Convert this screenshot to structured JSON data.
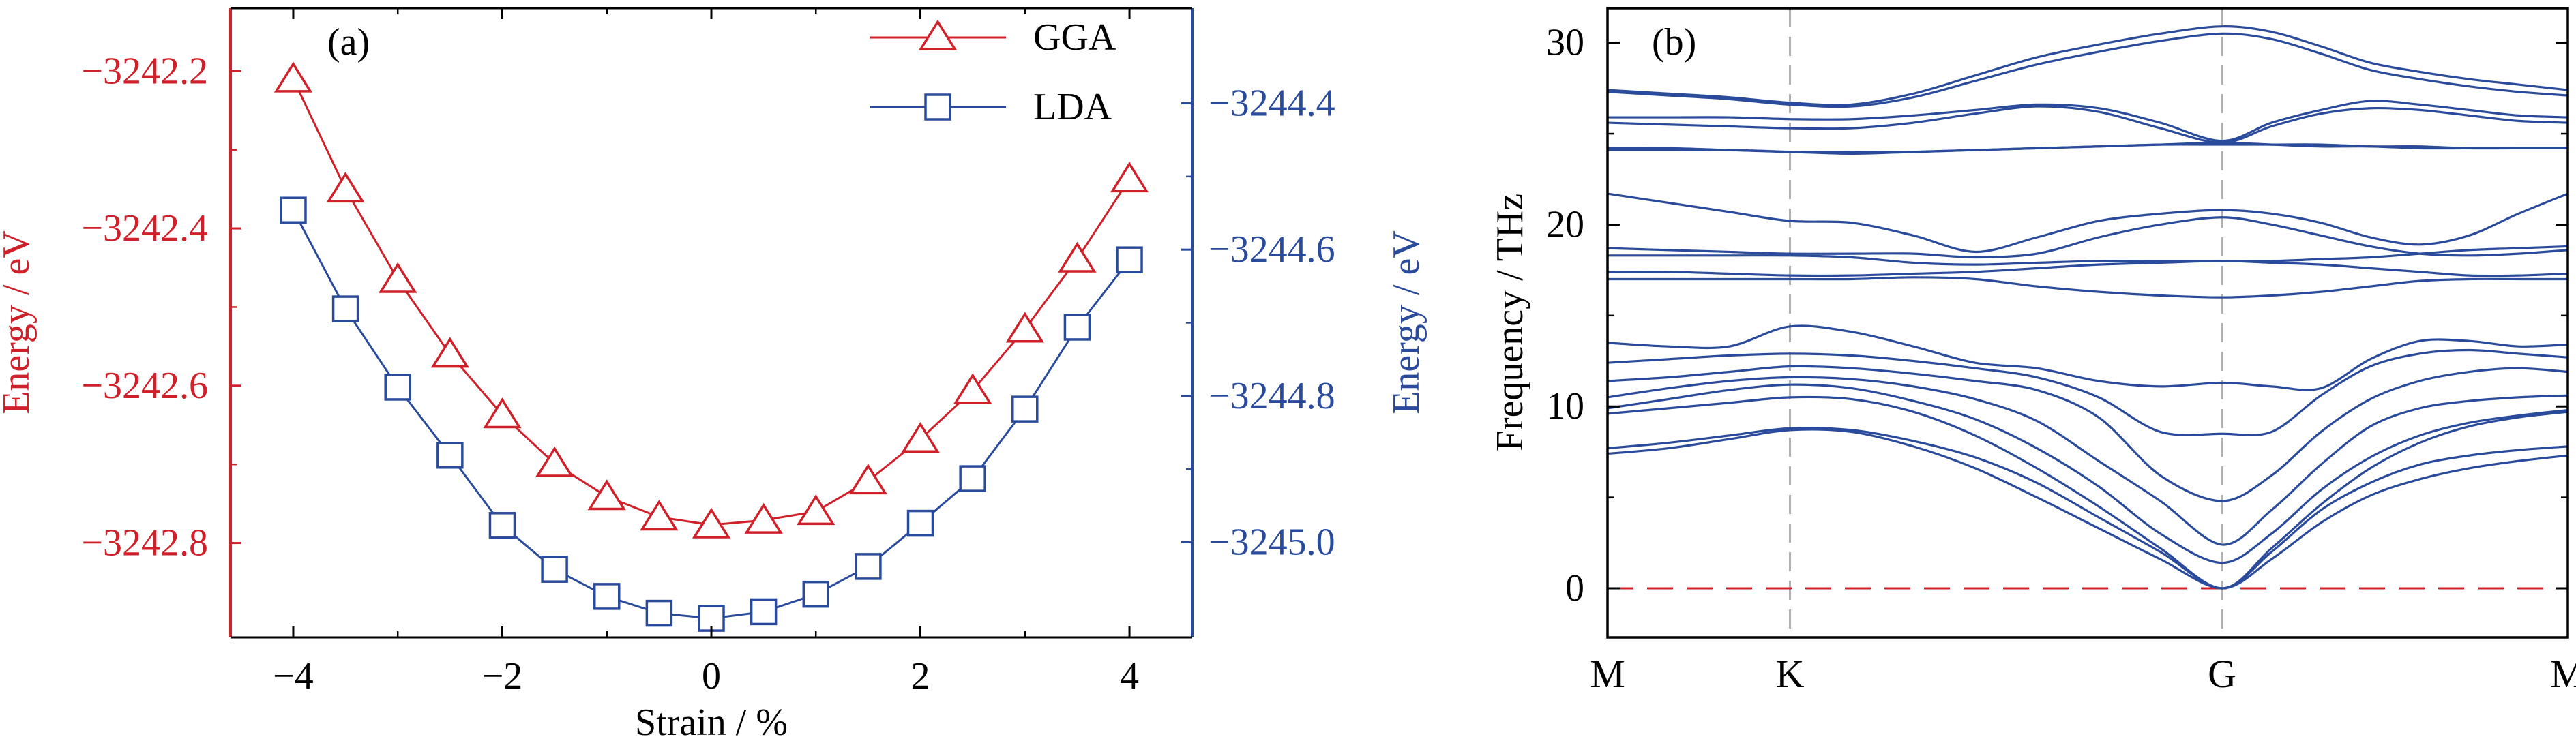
{
  "colors": {
    "gga": "#d0202a",
    "lda": "#2a4b9b",
    "band": "#2a4b9b",
    "zero_line": "#d0202a",
    "guide": "#b0b0b0",
    "axis": "#000000"
  },
  "chart_data": [
    {
      "type": "line",
      "panel_label": "(a)",
      "xlabel": "Strain / %",
      "ylabel_left": "Energy / eV",
      "ylabel_right": "Energy / eV",
      "xlim": [
        -4.6,
        4.6
      ],
      "x_ticks": [
        -4,
        -2,
        0,
        2,
        4
      ],
      "x_tick_labels": [
        "−4",
        "−2",
        "0",
        "2",
        "4"
      ],
      "ylim_left": [
        -3242.92,
        -3242.12
      ],
      "y_ticks_left": [
        -3242.2,
        -3242.4,
        -3242.6,
        -3242.8
      ],
      "y_tick_labels_left": [
        "−3242.2",
        "−3242.4",
        "−3242.6",
        "−3242.8"
      ],
      "ylim_right": [
        -3245.13,
        -3244.27
      ],
      "y_ticks_right": [
        -3244.4,
        -3244.6,
        -3244.8,
        -3245.0
      ],
      "y_tick_labels_right": [
        "−3244.4",
        "−3244.6",
        "−3244.8",
        "−3245.0"
      ],
      "legend_position": "top-right",
      "x": [
        -4,
        -3.5,
        -3,
        -2.5,
        -2,
        -1.5,
        -1,
        -0.5,
        0,
        0.5,
        1,
        1.5,
        2,
        2.5,
        3,
        3.5,
        4
      ],
      "series": [
        {
          "name": "GGA",
          "axis": "left",
          "marker": "triangle",
          "values": [
            -3242.21,
            -3242.35,
            -3242.465,
            -3242.56,
            -3242.637,
            -3242.699,
            -3242.741,
            -3242.767,
            -3242.777,
            -3242.771,
            -3242.76,
            -3242.721,
            -3242.668,
            -3242.606,
            -3242.528,
            -3242.439,
            -3242.337
          ]
        },
        {
          "name": "LDA",
          "axis": "right",
          "marker": "square",
          "values": [
            -3244.546,
            -3244.681,
            -3244.788,
            -3244.881,
            -3244.977,
            -3245.037,
            -3245.074,
            -3245.097,
            -3245.104,
            -3245.095,
            -3245.071,
            -3245.033,
            -3244.974,
            -3244.913,
            -3244.818,
            -3244.706,
            -3244.614
          ]
        }
      ]
    },
    {
      "type": "line",
      "panel_label": "(b)",
      "ylabel": "Frequency / THz",
      "ylim": [
        -2.7,
        31.9
      ],
      "y_ticks": [
        0,
        10,
        20,
        30
      ],
      "y_tick_labels": [
        "0",
        "10",
        "20",
        "30"
      ],
      "x_points": [
        0,
        1,
        2,
        3
      ],
      "x_tick_labels": [
        "M",
        "K",
        "G",
        "M"
      ],
      "segment_fraction": [
        0,
        0.19,
        0.64,
        1.0
      ],
      "zero_line": 0,
      "bands": [
        {
          "values": [
            7.4,
            7.7,
            8.2,
            8.7,
            8.6,
            7.8,
            6.6,
            5.0,
            3.3,
            1.6,
            0.0,
            1.6,
            3.6,
            5.1,
            6.0,
            6.6,
            7.0,
            7.3
          ]
        },
        {
          "values": [
            7.7,
            8.0,
            8.4,
            8.8,
            8.7,
            8.1,
            7.2,
            5.8,
            3.9,
            2.0,
            0.0,
            2.0,
            4.3,
            5.8,
            6.8,
            7.3,
            7.6,
            7.8
          ]
        },
        {
          "values": [
            9.6,
            9.9,
            10.2,
            10.5,
            10.4,
            9.7,
            8.4,
            6.6,
            4.5,
            2.2,
            0.0,
            2.2,
            4.6,
            6.6,
            8.0,
            8.9,
            9.4,
            9.7
          ]
        },
        {
          "values": [
            9.9,
            10.4,
            10.9,
            11.2,
            11.0,
            10.3,
            9.3,
            7.7,
            5.6,
            3.0,
            1.4,
            3.0,
            5.4,
            7.2,
            8.4,
            9.1,
            9.5,
            9.8
          ]
        },
        {
          "values": [
            10.5,
            11.0,
            11.4,
            11.6,
            11.5,
            11.1,
            10.4,
            9.2,
            7.0,
            4.8,
            2.4,
            4.3,
            6.8,
            8.9,
            9.9,
            10.3,
            10.5,
            10.6
          ]
        },
        {
          "values": [
            11.4,
            11.6,
            11.9,
            12.2,
            12.1,
            11.8,
            11.4,
            10.9,
            9.4,
            6.2,
            4.8,
            6.2,
            8.6,
            10.4,
            11.4,
            11.9,
            12.1,
            11.9
          ]
        },
        {
          "values": [
            12.4,
            12.6,
            12.8,
            12.9,
            12.8,
            12.5,
            12.1,
            11.6,
            10.5,
            8.6,
            8.5,
            8.6,
            10.6,
            12.2,
            12.9,
            13.1,
            12.9,
            12.7
          ]
        },
        {
          "values": [
            13.5,
            13.3,
            13.3,
            14.4,
            14.1,
            13.3,
            12.4,
            12.1,
            11.4,
            11.1,
            11.3,
            11.1,
            11.0,
            12.6,
            13.6,
            13.6,
            13.3,
            13.4
          ]
        },
        {
          "values": [
            17.0,
            17.0,
            17.0,
            17.0,
            17.0,
            17.1,
            17.0,
            16.6,
            16.3,
            16.1,
            16.0,
            16.1,
            16.3,
            16.6,
            16.9,
            17.0,
            17.0,
            17.0
          ]
        },
        {
          "values": [
            17.4,
            17.4,
            17.3,
            17.2,
            17.2,
            17.3,
            17.4,
            17.6,
            17.8,
            17.9,
            18.0,
            17.9,
            17.8,
            17.6,
            17.4,
            17.2,
            17.2,
            17.3
          ]
        },
        {
          "values": [
            18.3,
            18.3,
            18.3,
            18.3,
            18.2,
            17.9,
            17.8,
            17.9,
            18.0,
            18.0,
            18.0,
            18.0,
            18.1,
            18.2,
            18.4,
            18.6,
            18.7,
            18.8
          ]
        },
        {
          "values": [
            18.7,
            18.6,
            18.5,
            18.4,
            18.4,
            18.4,
            18.2,
            18.4,
            19.3,
            20.0,
            20.4,
            20.0,
            19.4,
            18.8,
            18.4,
            18.3,
            18.4,
            18.6
          ]
        },
        {
          "values": [
            21.7,
            21.2,
            20.7,
            20.2,
            20.1,
            19.4,
            18.5,
            19.3,
            20.2,
            20.6,
            20.8,
            20.6,
            20.1,
            19.3,
            18.9,
            19.4,
            20.6,
            21.7
          ]
        },
        {
          "values": [
            24.1,
            24.1,
            24.1,
            24.0,
            23.9,
            24.0,
            24.1,
            24.2,
            24.3,
            24.4,
            24.4,
            24.4,
            24.4,
            24.3,
            24.3,
            24.2,
            24.2,
            24.2
          ]
        },
        {
          "values": [
            24.2,
            24.2,
            24.1,
            24.0,
            24.0,
            24.0,
            24.1,
            24.2,
            24.3,
            24.4,
            24.5,
            24.4,
            24.3,
            24.3,
            24.2,
            24.2,
            24.2,
            24.2
          ]
        },
        {
          "values": [
            25.6,
            25.5,
            25.4,
            25.3,
            25.3,
            25.6,
            26.1,
            26.5,
            26.2,
            25.3,
            24.5,
            25.4,
            26.1,
            26.4,
            26.3,
            26.0,
            25.7,
            25.6
          ]
        },
        {
          "values": [
            25.9,
            25.9,
            25.9,
            25.8,
            25.8,
            26.0,
            26.3,
            26.6,
            26.4,
            25.6,
            24.6,
            25.6,
            26.3,
            26.8,
            26.6,
            26.3,
            26.0,
            25.9
          ]
        },
        {
          "values": [
            27.3,
            27.1,
            26.9,
            26.6,
            26.5,
            27.0,
            27.9,
            28.8,
            29.5,
            30.1,
            30.5,
            30.2,
            29.4,
            28.5,
            28.0,
            27.6,
            27.3,
            27.1
          ]
        },
        {
          "values": [
            27.4,
            27.2,
            27.0,
            26.7,
            26.6,
            27.2,
            28.2,
            29.2,
            29.9,
            30.5,
            30.9,
            30.6,
            29.8,
            28.9,
            28.4,
            28.0,
            27.7,
            27.4
          ]
        }
      ]
    }
  ]
}
